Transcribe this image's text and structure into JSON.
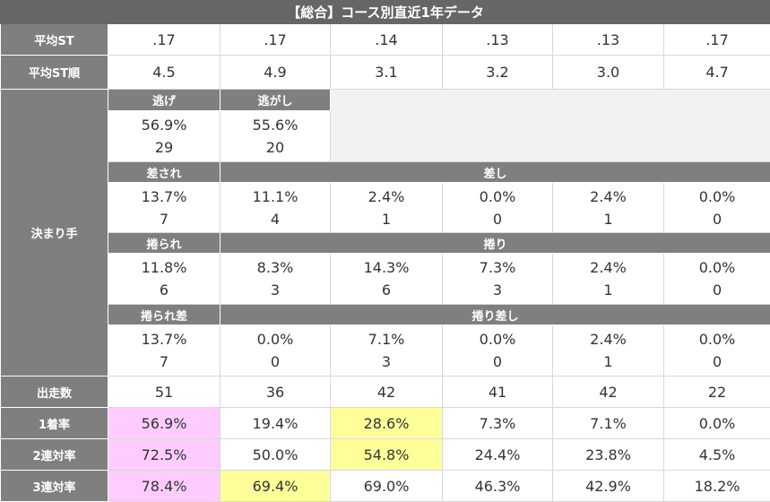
{
  "title": "【総合】コース別直近1年データ",
  "rows_top": [
    {
      "label": "平均ST",
      "values": [
        ".17",
        ".17",
        ".14",
        ".13",
        ".13",
        ".17"
      ]
    },
    {
      "label": "平均ST順",
      "values": [
        "4.5",
        "4.9",
        "3.1",
        "3.2",
        "3.0",
        "4.7"
      ]
    }
  ],
  "kimarite": {
    "label": "決まり手",
    "sections": [
      {
        "labels": [
          "逃げ",
          "逃がし"
        ],
        "pct": [
          "56.9%",
          "55.6%"
        ],
        "count": [
          29,
          20
        ]
      },
      {
        "labels": [
          "差され",
          "差し"
        ],
        "pct": [
          "13.7%",
          "11.1%",
          "2.4%",
          "0.0%",
          "2.4%",
          "0.0%"
        ],
        "count": [
          7,
          4,
          1,
          0,
          1,
          0
        ]
      },
      {
        "labels": [
          "捲られ",
          "捲り"
        ],
        "pct": [
          "11.8%",
          "8.3%",
          "14.3%",
          "7.3%",
          "2.4%",
          "0.0%"
        ],
        "count": [
          6,
          3,
          6,
          3,
          1,
          0
        ]
      },
      {
        "labels": [
          "捲られ差",
          "捲り差し"
        ],
        "pct": [
          "13.7%",
          "0.0%",
          "7.1%",
          "0.0%",
          "2.4%",
          "0.0%"
        ],
        "count": [
          7,
          0,
          3,
          0,
          1,
          0
        ]
      }
    ]
  },
  "rows_bottom": [
    {
      "label": "出走数",
      "values": [
        51,
        36,
        42,
        41,
        42,
        22
      ]
    },
    {
      "label": "1着率",
      "values": [
        "56.9%",
        "19.4%",
        "28.6%",
        "7.3%",
        "7.1%",
        "0.0%"
      ],
      "highlight": {
        "0": "#ffccff",
        "2": "#ffff99"
      }
    },
    {
      "label": "2連対率",
      "values": [
        "72.5%",
        "50.0%",
        "54.8%",
        "24.4%",
        "23.8%",
        "4.5%"
      ],
      "highlight": {
        "0": "#ffccff",
        "2": "#ffff99"
      }
    },
    {
      "label": "3連対率",
      "values": [
        "78.4%",
        "69.4%",
        "69.0%",
        "46.3%",
        "42.9%",
        "18.2%"
      ],
      "highlight": {
        "0": "#ffccff",
        "1": "#ffff99"
      }
    }
  ]
}
